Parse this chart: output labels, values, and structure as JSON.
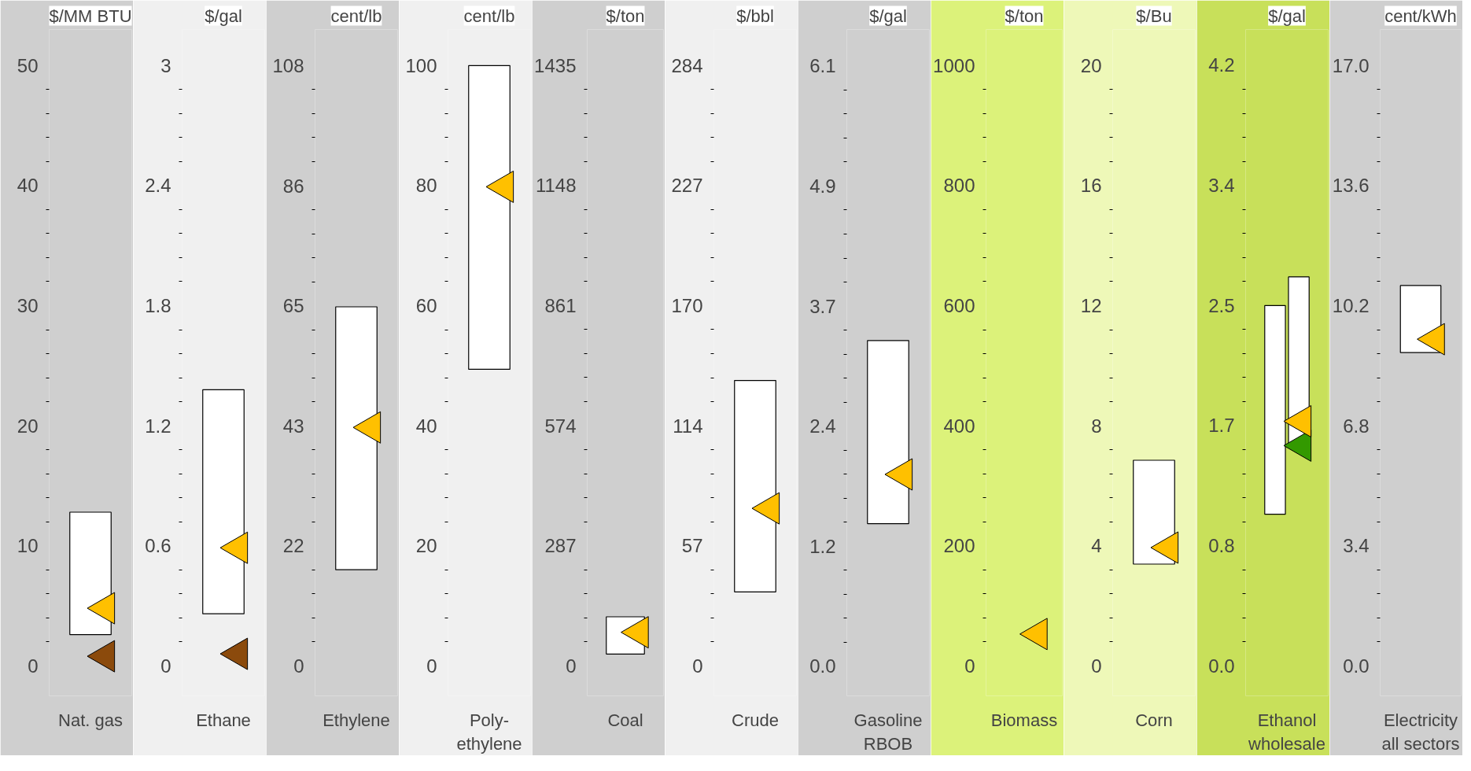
{
  "chart_data": [
    {
      "type": "bar",
      "title": "$/MM BTU",
      "categories": [
        "Nat. gas"
      ],
      "ylim": [
        -2.5,
        53
      ],
      "yticks": [
        0,
        10,
        20,
        30,
        40,
        50
      ],
      "grid": false,
      "marker": "triangle",
      "series": [
        {
          "color": "#ffffff",
          "base": [
            2.6
          ],
          "values": [
            10.2
          ]
        },
        {
          "type": "scatter",
          "color": "#ffc000",
          "x": [
            "Nat. gas"
          ],
          "values": [
            4.8
          ]
        },
        {
          "type": "scatter",
          "color": "#8b4a0c",
          "x": [
            "Nat. gas"
          ],
          "values": [
            0.8
          ]
        }
      ]
    },
    {
      "type": "bar",
      "title": "$/gal",
      "categories": [
        "Ethane"
      ],
      "ylim": [
        -0.15,
        3.18
      ],
      "yticks": [
        0,
        0.6,
        1.2,
        1.8,
        2.4,
        3
      ],
      "grid": false,
      "marker": "triangle",
      "series": [
        {
          "color": "#ffffff",
          "base": [
            0.26
          ],
          "values": [
            1.12
          ]
        },
        {
          "type": "scatter",
          "color": "#ffc000",
          "x": [
            "Ethane"
          ],
          "values": [
            0.59
          ]
        },
        {
          "type": "scatter",
          "color": "#8b4a0c",
          "x": [
            "Ethane"
          ],
          "values": [
            0.06
          ]
        }
      ]
    },
    {
      "type": "bar",
      "title": "cent/lb",
      "categories": [
        "Ethylene"
      ],
      "ylim": [
        -5.4,
        114.5
      ],
      "yticks": [
        0,
        {
          "value": 21.6,
          "label": "22"
        },
        {
          "value": 43.2,
          "label": "43"
        },
        {
          "value": 64.8,
          "label": "65"
        },
        {
          "value": 86.4,
          "label": "86"
        },
        108
      ],
      "grid": false,
      "marker": "triangle",
      "series": [
        {
          "color": "#ffffff",
          "base": [
            17.3
          ],
          "values": [
            47.3
          ]
        },
        {
          "type": "scatter",
          "color": "#ffc000",
          "x": [
            "Ethylene"
          ],
          "values": [
            42.9
          ]
        }
      ]
    },
    {
      "type": "bar",
      "title": "cent/lb",
      "categories": [
        "Poly-\nethylene"
      ],
      "ylim": [
        -5,
        106
      ],
      "yticks": [
        0,
        20,
        40,
        60,
        80,
        100
      ],
      "grid": false,
      "marker": "triangle",
      "series": [
        {
          "color": "#ffffff",
          "base": [
            49.4
          ],
          "values": [
            50.6
          ]
        },
        {
          "type": "scatter",
          "color": "#ffc000",
          "x": [
            "Poly-\nethylene"
          ],
          "values": [
            79.8
          ]
        }
      ]
    },
    {
      "type": "bar",
      "title": "$/ton",
      "categories": [
        "Coal"
      ],
      "ylim": [
        -72,
        1521
      ],
      "yticks": [
        0,
        287,
        574,
        861,
        1148,
        1435
      ],
      "grid": false,
      "marker": "triangle",
      "series": [
        {
          "color": "#ffffff",
          "base": [
            28
          ],
          "values": [
            89
          ]
        },
        {
          "type": "scatter",
          "color": "#ffc000",
          "x": [
            "Coal"
          ],
          "values": [
            80
          ]
        }
      ]
    },
    {
      "type": "bar",
      "title": "$/bbl",
      "categories": [
        "Crude"
      ],
      "ylim": [
        -14.2,
        301
      ],
      "yticks": [
        0,
        {
          "value": 56.8,
          "label": "57"
        },
        {
          "value": 113.6,
          "label": "114"
        },
        {
          "value": 170.4,
          "label": "170"
        },
        {
          "value": 227.2,
          "label": "227"
        },
        284
      ],
      "grid": false,
      "marker": "triangle",
      "series": [
        {
          "color": "#ffffff",
          "base": [
            35
          ],
          "values": [
            100
          ]
        },
        {
          "type": "scatter",
          "color": "#ffc000",
          "x": [
            "Crude"
          ],
          "values": [
            74.5
          ]
        }
      ]
    },
    {
      "type": "bar",
      "title": "$/gal",
      "categories": [
        "Gasoline\nRBOB"
      ],
      "ylim": [
        -0.3,
        6.47
      ],
      "yticks": [
        {
          "value": 0,
          "label": "0.0"
        },
        {
          "value": 1.22,
          "label": "1.2"
        },
        {
          "value": 2.44,
          "label": "2.4"
        },
        {
          "value": 3.66,
          "label": "3.7"
        },
        {
          "value": 4.88,
          "label": "4.9"
        },
        6.1
      ],
      "grid": false,
      "marker": "triangle",
      "series": [
        {
          "color": "#ffffff",
          "base": [
            1.45
          ],
          "values": [
            1.86
          ]
        },
        {
          "type": "scatter",
          "color": "#ffc000",
          "x": [
            "Gasoline\nRBOB"
          ],
          "values": [
            1.95
          ]
        }
      ]
    },
    {
      "type": "scatter",
      "title": "$/ton",
      "categories": [
        "Biomass"
      ],
      "ylim": [
        -50,
        1060
      ],
      "yticks": [
        0,
        200,
        400,
        600,
        800,
        1000
      ],
      "grid": false,
      "marker": "triangle",
      "series": [
        {
          "color": "#ffc000",
          "values": [
            53
          ]
        }
      ]
    },
    {
      "type": "bar",
      "title": "$/Bu",
      "categories": [
        "Corn"
      ],
      "ylim": [
        -1,
        21.2
      ],
      "yticks": [
        0,
        4,
        8,
        12,
        16,
        20
      ],
      "grid": false,
      "marker": "triangle",
      "series": [
        {
          "color": "#ffffff",
          "base": [
            3.39
          ],
          "values": [
            3.46
          ]
        },
        {
          "type": "scatter",
          "color": "#ffc000",
          "x": [
            "Corn"
          ],
          "values": [
            3.94
          ]
        }
      ]
    },
    {
      "type": "bar",
      "title": "$/gal",
      "categories": [
        "Ethanol\nwholesale"
      ],
      "ylim": [
        -0.21,
        4.45
      ],
      "yticks": [
        {
          "value": 0,
          "label": "0.0"
        },
        {
          "value": 0.84,
          "label": "0.8"
        },
        {
          "value": 1.68,
          "label": "1.7"
        },
        {
          "value": 2.52,
          "label": "2.5"
        },
        {
          "value": 3.36,
          "label": "3.4"
        },
        4.2
      ],
      "grid": false,
      "marker": "triangle",
      "series": [
        {
          "color": "#ffffff",
          "base": [
            1.06
          ],
          "values": [
            1.46
          ]
        },
        {
          "color": "#ffffff",
          "base": [
            1.55
          ],
          "values": [
            1.17
          ]
        },
        {
          "type": "scatter",
          "color": "#339900",
          "x": [
            "Ethanol\nwholesale"
          ],
          "values": [
            1.54
          ]
        },
        {
          "type": "scatter",
          "color": "#ffc000",
          "x": [
            "Ethanol\nwholesale"
          ],
          "values": [
            1.71
          ]
        }
      ]
    },
    {
      "type": "bar",
      "title": "cent/kWh",
      "categories": [
        "Electricity\nall sectors"
      ],
      "ylim": [
        -0.85,
        18.02
      ],
      "yticks": [
        {
          "value": 0,
          "label": "0.0"
        },
        3.4,
        6.8,
        10.2,
        13.6,
        {
          "value": 17,
          "label": "17.0"
        }
      ],
      "grid": false,
      "marker": "triangle",
      "series": [
        {
          "color": "#ffffff",
          "base": [
            8.87
          ],
          "values": [
            1.9
          ]
        },
        {
          "type": "scatter",
          "color": "#ffc000",
          "x": [
            "Electricity\nall sectors"
          ],
          "values": [
            9.25
          ]
        }
      ]
    }
  ]
}
